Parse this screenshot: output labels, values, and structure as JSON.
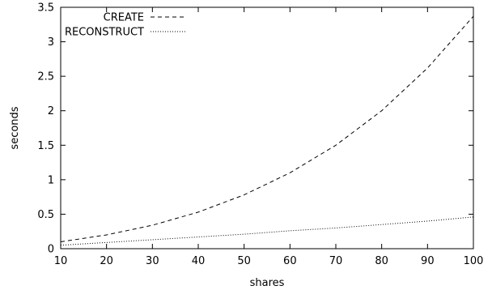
{
  "chart_data": {
    "type": "line",
    "title": "",
    "xlabel": "shares",
    "ylabel": "seconds",
    "xlim": [
      10,
      100
    ],
    "ylim": [
      0,
      3.5
    ],
    "x_ticks": [
      "10",
      "20",
      "30",
      "40",
      "50",
      "60",
      "70",
      "80",
      "90",
      "100"
    ],
    "y_ticks": [
      "0",
      "0.5",
      "1",
      "1.5",
      "2",
      "2.5",
      "3",
      "3.5"
    ],
    "grid": false,
    "legend_position": "top-left",
    "x": [
      10,
      20,
      30,
      40,
      50,
      60,
      70,
      80,
      90,
      100
    ],
    "series": [
      {
        "name": "CREATE",
        "style": "dashed",
        "color": "#000000",
        "values": [
          0.1,
          0.2,
          0.34,
          0.53,
          0.78,
          1.1,
          1.5,
          2.0,
          2.62,
          3.37
        ]
      },
      {
        "name": "RECONSTRUCT",
        "style": "dotted",
        "color": "#000000",
        "values": [
          0.05,
          0.09,
          0.13,
          0.17,
          0.21,
          0.26,
          0.3,
          0.35,
          0.4,
          0.46
        ]
      }
    ]
  }
}
